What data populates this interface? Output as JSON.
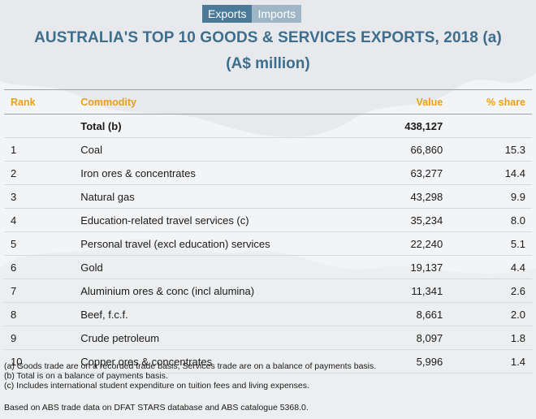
{
  "toggle": {
    "exports_label": "Exports",
    "imports_label": "Imports"
  },
  "title_line1": "AUSTRALIA'S TOP 10 GOODS & SERVICES EXPORTS, 2018 (a)",
  "title_line2": "(A$ million)",
  "chart_data": {
    "type": "table",
    "columns": [
      "Rank",
      "Commodity",
      "Value",
      "% share"
    ],
    "total": {
      "rank": "",
      "commodity": "Total (b)",
      "value": "438,127",
      "share": ""
    },
    "rows": [
      {
        "rank": "1",
        "commodity": "Coal",
        "value": "66,860",
        "share": "15.3"
      },
      {
        "rank": "2",
        "commodity": "Iron ores & concentrates",
        "value": "63,277",
        "share": "14.4"
      },
      {
        "rank": "3",
        "commodity": "Natural gas",
        "value": "43,298",
        "share": "9.9"
      },
      {
        "rank": "4",
        "commodity": "Education-related travel services (c)",
        "value": "35,234",
        "share": "8.0"
      },
      {
        "rank": "5",
        "commodity": "Personal travel (excl education) services",
        "value": "22,240",
        "share": "5.1"
      },
      {
        "rank": "6",
        "commodity": "Gold",
        "value": "19,137",
        "share": "4.4"
      },
      {
        "rank": "7",
        "commodity": "Aluminium ores & conc (incl alumina)",
        "value": "11,341",
        "share": "2.6"
      },
      {
        "rank": "8",
        "commodity": "Beef, f.c.f.",
        "value": "8,661",
        "share": "2.0"
      },
      {
        "rank": "9",
        "commodity": "Crude petroleum",
        "value": "8,097",
        "share": "1.8"
      },
      {
        "rank": "10",
        "commodity": "Copper ores & concentrates",
        "value": "5,996",
        "share": "1.4"
      }
    ]
  },
  "notes": [
    "(a) Goods trade are on a recorded trade basis, Services trade are on a balance of payments basis.",
    "(b) Total is on a balance of payments basis.",
    "(c) Includes international student expenditure on tuition fees and living expenses."
  ],
  "source": "Based on ABS trade data on DFAT STARS database and ABS catalogue 5368.0."
}
